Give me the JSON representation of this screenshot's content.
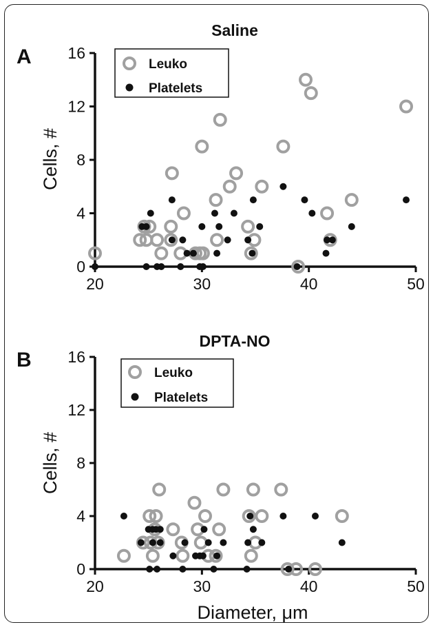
{
  "chart_data": [
    {
      "type": "scatter",
      "panel_label": "A",
      "title": "Saline",
      "ylabel": "Cells, #",
      "xlabel": "",
      "xlim": [
        20,
        50
      ],
      "ylim": [
        0,
        16
      ],
      "xticks": [
        "20",
        "30",
        "40",
        "50"
      ],
      "yticks": [
        "0",
        "4",
        "8",
        "12",
        "16"
      ],
      "legend_position": "top-left",
      "series": [
        {
          "name": "Leuko",
          "marker": "open-circle",
          "color": "#a0a0a0",
          "points": [
            [
              20,
              1
            ],
            [
              24.2,
              2
            ],
            [
              24.6,
              3
            ],
            [
              24.8,
              2
            ],
            [
              25.1,
              3
            ],
            [
              25.8,
              2
            ],
            [
              26.2,
              1
            ],
            [
              27.2,
              7
            ],
            [
              27.1,
              3
            ],
            [
              27.1,
              2
            ],
            [
              28,
              1
            ],
            [
              28.3,
              4
            ],
            [
              29.4,
              1
            ],
            [
              29.8,
              1
            ],
            [
              30,
              9
            ],
            [
              30.1,
              1
            ],
            [
              31.3,
              5
            ],
            [
              31.4,
              2
            ],
            [
              31.7,
              11
            ],
            [
              32.6,
              6
            ],
            [
              33.2,
              7
            ],
            [
              34.3,
              3
            ],
            [
              34.6,
              1
            ],
            [
              34.9,
              2
            ],
            [
              35.6,
              6
            ],
            [
              37.6,
              9
            ],
            [
              39,
              0
            ],
            [
              39.7,
              14
            ],
            [
              40.2,
              13
            ],
            [
              41.7,
              4
            ],
            [
              42,
              2
            ],
            [
              44,
              5
            ],
            [
              49.1,
              12
            ]
          ]
        },
        {
          "name": "Platelets",
          "marker": "filled-circle",
          "color": "#111111",
          "points": [
            [
              20,
              0
            ],
            [
              24.4,
              3
            ],
            [
              24.8,
              3
            ],
            [
              24.8,
              0
            ],
            [
              25.2,
              4
            ],
            [
              25.8,
              0
            ],
            [
              26.2,
              0
            ],
            [
              27.2,
              5
            ],
            [
              27.2,
              2
            ],
            [
              28,
              0
            ],
            [
              28.2,
              2
            ],
            [
              28.6,
              1
            ],
            [
              29.2,
              1
            ],
            [
              29.8,
              0
            ],
            [
              30.1,
              0
            ],
            [
              30,
              3
            ],
            [
              31.2,
              4
            ],
            [
              31.4,
              1
            ],
            [
              31.6,
              3
            ],
            [
              32.4,
              2
            ],
            [
              33,
              4
            ],
            [
              34.3,
              2
            ],
            [
              34.7,
              1
            ],
            [
              34.8,
              5
            ],
            [
              35.4,
              3
            ],
            [
              37.6,
              6
            ],
            [
              38.9,
              0
            ],
            [
              39.6,
              5
            ],
            [
              40.3,
              4
            ],
            [
              41.6,
              1
            ],
            [
              41.7,
              2
            ],
            [
              42.2,
              2
            ],
            [
              44,
              3
            ],
            [
              49.1,
              5
            ]
          ]
        }
      ]
    },
    {
      "type": "scatter",
      "panel_label": "B",
      "title": "DPTA-NO",
      "ylabel": "Cells, #",
      "xlabel": "Diameter, μm",
      "xlim": [
        20,
        50
      ],
      "ylim": [
        0,
        16
      ],
      "xticks": [
        "20",
        "30",
        "40",
        "50"
      ],
      "yticks": [
        "0",
        "4",
        "8",
        "12",
        "16"
      ],
      "legend_position": "top-left",
      "series": [
        {
          "name": "Leuko",
          "marker": "open-circle",
          "color": "#a0a0a0",
          "points": [
            [
              22.7,
              1
            ],
            [
              24.5,
              2
            ],
            [
              25.1,
              4
            ],
            [
              25.2,
              2
            ],
            [
              25.4,
              1
            ],
            [
              25.6,
              3
            ],
            [
              25.7,
              4
            ],
            [
              25.9,
              2
            ],
            [
              26,
              6
            ],
            [
              27.3,
              3
            ],
            [
              28.1,
              2
            ],
            [
              28.2,
              1
            ],
            [
              29.3,
              5
            ],
            [
              29.6,
              3
            ],
            [
              29.9,
              2
            ],
            [
              30.3,
              4
            ],
            [
              30.6,
              1
            ],
            [
              31.3,
              1
            ],
            [
              31.6,
              3
            ],
            [
              32,
              6
            ],
            [
              34.4,
              4
            ],
            [
              34.6,
              1
            ],
            [
              34.8,
              6
            ],
            [
              35,
              2
            ],
            [
              35.6,
              4
            ],
            [
              37.4,
              6
            ],
            [
              38,
              0
            ],
            [
              38.8,
              0
            ],
            [
              40.6,
              0
            ],
            [
              43.1,
              4
            ]
          ]
        },
        {
          "name": "Platelets",
          "marker": "filled-circle",
          "color": "#111111",
          "points": [
            [
              22.7,
              4
            ],
            [
              24.3,
              2
            ],
            [
              25,
              3
            ],
            [
              25.1,
              0
            ],
            [
              25.4,
              2
            ],
            [
              25.4,
              3
            ],
            [
              25.7,
              3
            ],
            [
              25.8,
              0
            ],
            [
              26.1,
              3
            ],
            [
              26.1,
              2
            ],
            [
              27.3,
              1
            ],
            [
              28.2,
              0
            ],
            [
              28.4,
              2
            ],
            [
              29.4,
              1
            ],
            [
              29.8,
              1
            ],
            [
              30.1,
              1
            ],
            [
              30.2,
              3
            ],
            [
              30.6,
              2
            ],
            [
              31.1,
              0
            ],
            [
              31.4,
              1
            ],
            [
              32,
              2
            ],
            [
              34.2,
              0
            ],
            [
              34.3,
              2
            ],
            [
              34.5,
              4
            ],
            [
              34.8,
              3
            ],
            [
              35.6,
              2
            ],
            [
              37.6,
              4
            ],
            [
              38.1,
              0
            ],
            [
              40.6,
              4
            ],
            [
              43.1,
              2
            ]
          ]
        }
      ]
    }
  ]
}
